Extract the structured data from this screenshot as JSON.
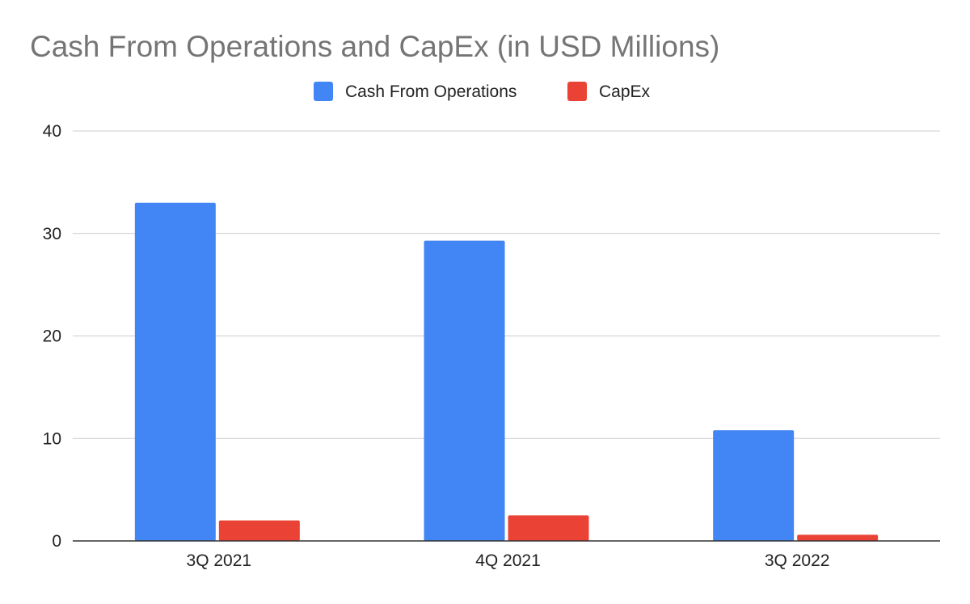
{
  "chart_data": {
    "type": "bar",
    "title": "Cash From Operations and CapEx (in USD Millions)",
    "xlabel": "",
    "ylabel": "",
    "categories": [
      "3Q 2021",
      "4Q 2021",
      "3Q 2022"
    ],
    "series": [
      {
        "name": "Cash From Operations",
        "color": "#4285f4",
        "values": [
          33.0,
          29.3,
          10.8
        ]
      },
      {
        "name": "CapEx",
        "color": "#ea4335",
        "values": [
          2.0,
          2.5,
          0.6
        ]
      }
    ],
    "ylim": [
      0,
      40
    ],
    "yticks": [
      "0",
      "10",
      "20",
      "30",
      "40"
    ],
    "grid": true,
    "legend": "top-center"
  }
}
